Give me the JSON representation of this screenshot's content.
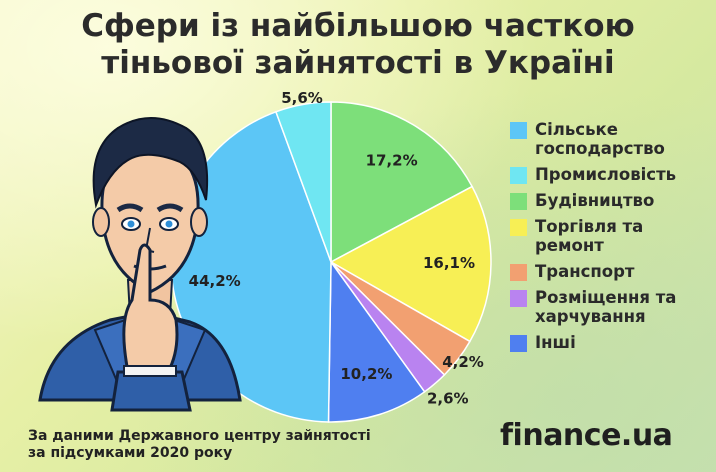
{
  "title": {
    "line1": "Сфери із найбільшою часткою",
    "line2": "тіньової зайнятості в Україні"
  },
  "source": {
    "line1": "За даними Державного центру зайнятості",
    "line2": "за підсумками 2020 року"
  },
  "brand": "finance.ua",
  "illustration_icon": "man-shushing-illustration",
  "chart_data": {
    "type": "pie",
    "title": "Сфери із найбільшою часткою тіньової зайнятості в Україні",
    "start_angle_deg": -90,
    "direction": "clockwise",
    "legend_position": "right",
    "slices": [
      {
        "label": "Будівництво",
        "value": 17.2,
        "value_label": "17,2%",
        "color": "#7ddf7a"
      },
      {
        "label": "Торгівля та ремонт",
        "value": 16.1,
        "value_label": "16,1%",
        "color": "#f7ef55"
      },
      {
        "label": "Транспорт",
        "value": 4.2,
        "value_label": "4,2%",
        "color": "#f2a071"
      },
      {
        "label": "Розміщення та харчування",
        "value": 2.6,
        "value_label": "2,6%",
        "color": "#b983f0"
      },
      {
        "label": "Інші",
        "value": 10.2,
        "value_label": "10,2%",
        "color": "#4f7ff0"
      },
      {
        "label": "Сільське господарство",
        "value": 44.2,
        "value_label": "44,2%",
        "color": "#5cc6f6"
      },
      {
        "label": "Промисловість",
        "value": 5.6,
        "value_label": "5,6%",
        "color": "#6fe6f2"
      }
    ],
    "legend": [
      {
        "label": "Сільське господарство",
        "color": "#5cc6f6"
      },
      {
        "label": "Промисловість",
        "color": "#6fe6f2"
      },
      {
        "label": "Будівництво",
        "color": "#7ddf7a"
      },
      {
        "label": "Торгівля та ремонт",
        "color": "#f7ef55"
      },
      {
        "label": "Транспорт",
        "color": "#f2a071"
      },
      {
        "label": "Розміщення та харчування",
        "color": "#b983f0"
      },
      {
        "label": "Інші",
        "color": "#4f7ff0"
      }
    ]
  }
}
